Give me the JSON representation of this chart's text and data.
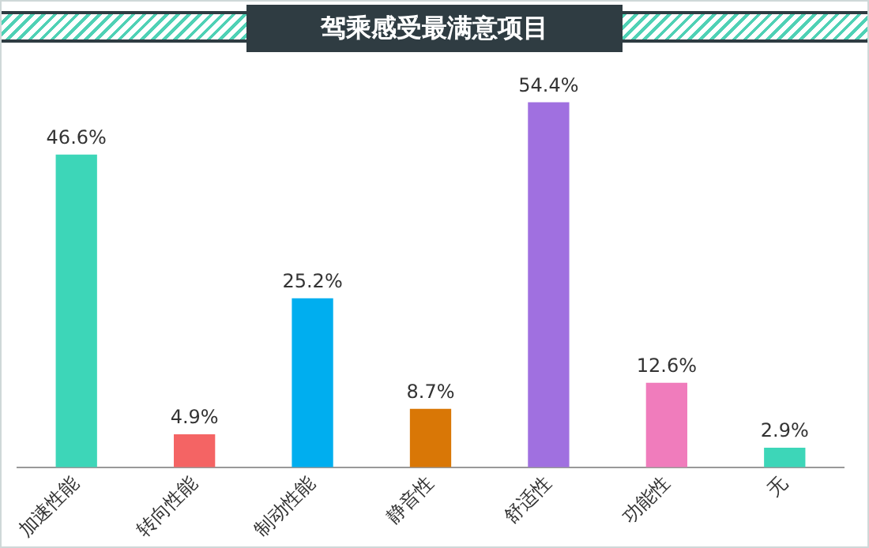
{
  "chart_data": {
    "type": "bar",
    "title": "驾乘感受最满意项目",
    "categories": [
      "加速性能",
      "转向性能",
      "制动性能",
      "静音性",
      "舒适性",
      "功能性",
      "无"
    ],
    "values": [
      46.6,
      4.9,
      25.2,
      8.7,
      54.4,
      12.6,
      2.9
    ],
    "value_labels": [
      "46.6%",
      "4.9%",
      "25.2%",
      "8.7%",
      "54.4%",
      "12.6%",
      "2.9%"
    ],
    "colors": [
      "#3dd6b8",
      "#f46464",
      "#00aeef",
      "#d97706",
      "#a070e0",
      "#f07cbc",
      "#3dd6b8"
    ],
    "grid": false,
    "legend": false
  }
}
